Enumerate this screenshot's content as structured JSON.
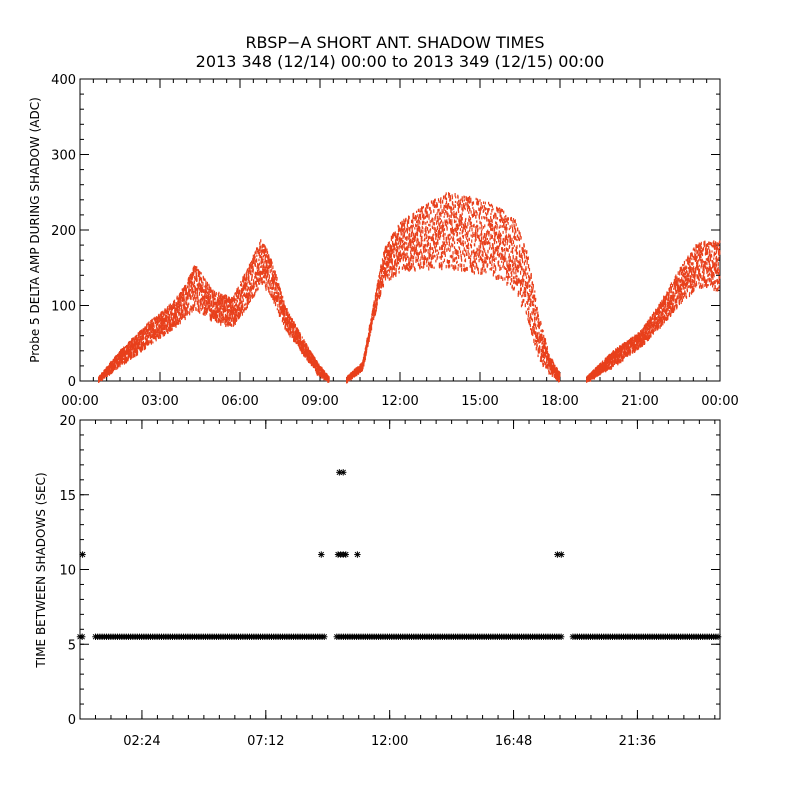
{
  "title": {
    "line1": "RBSP−A SHORT ANT. SHADOW TIMES",
    "line2": "2013 348 (12/14) 00:00 to 2013 349 (12/15) 00:00"
  },
  "chart_data": [
    {
      "type": "scatter",
      "name": "delta-amp",
      "ylabel": "Probe 5 DELTA AMP DURING SHADOW (ADC)",
      "xlabel": "",
      "xlim": [
        0,
        24
      ],
      "ylim": [
        0,
        400
      ],
      "x_tick_values": [
        0,
        3,
        6,
        9,
        12,
        15,
        18,
        21,
        24
      ],
      "x_tick_labels": [
        "00:00",
        "03:00",
        "06:00",
        "09:00",
        "12:00",
        "15:00",
        "18:00",
        "21:00",
        "00:00"
      ],
      "y_tick_values": [
        0,
        100,
        200,
        300,
        400
      ],
      "y_tick_labels": [
        "0",
        "100",
        "200",
        "300",
        "400"
      ],
      "color": "#e8401c",
      "envelope": {
        "x": [
          0.7,
          1.5,
          2.5,
          3.5,
          4.0,
          4.3,
          5.0,
          5.7,
          6.3,
          6.8,
          7.2,
          7.7,
          8.3,
          8.9,
          9.35,
          9.35,
          10.0,
          10.6,
          11.0,
          11.4,
          12.0,
          13.0,
          13.8,
          14.5,
          15.5,
          16.3,
          16.8,
          17.2,
          17.6,
          18.0,
          18.0,
          19.0,
          20.0,
          21.0,
          21.7,
          22.5,
          23.2,
          24.0
        ],
        "lower": [
          0,
          20,
          45,
          70,
          85,
          95,
          80,
          70,
          100,
          130,
          110,
          70,
          40,
          10,
          0,
          null,
          0,
          15,
          80,
          130,
          145,
          150,
          150,
          145,
          140,
          120,
          80,
          30,
          10,
          0,
          null,
          0,
          20,
          45,
          70,
          100,
          125,
          120
        ],
        "upper": [
          5,
          40,
          75,
          105,
          130,
          155,
          120,
          110,
          150,
          190,
          160,
          100,
          60,
          25,
          5,
          null,
          5,
          25,
          100,
          175,
          210,
          235,
          250,
          245,
          235,
          215,
          170,
          90,
          35,
          10,
          null,
          5,
          40,
          65,
          100,
          150,
          185,
          185
        ]
      }
    },
    {
      "type": "scatter",
      "name": "time-between",
      "ylabel": "TIME BETWEEN SHADOWS (SEC)",
      "xlabel": "",
      "xlim": [
        0,
        24.8
      ],
      "ylim": [
        0,
        20
      ],
      "x_tick_values": [
        2.4,
        7.2,
        12.0,
        16.8,
        21.6
      ],
      "x_tick_labels": [
        "02:24",
        "07:12",
        "12:00",
        "16:48",
        "21:36"
      ],
      "y_tick_values": [
        0,
        5,
        10,
        15,
        20
      ],
      "y_tick_labels": [
        "0",
        "5",
        "10",
        "15",
        "20"
      ],
      "color": "#000000",
      "baseline": {
        "y": 5.5,
        "ranges": [
          [
            0.0,
            0.15
          ],
          [
            0.6,
            9.5
          ],
          [
            9.95,
            18.7
          ],
          [
            19.1,
            24.8
          ]
        ]
      },
      "points": [
        {
          "x": 0.1,
          "y": 11
        },
        {
          "x": 9.35,
          "y": 11
        },
        {
          "x": 10.0,
          "y": 11
        },
        {
          "x": 10.1,
          "y": 11
        },
        {
          "x": 10.2,
          "y": 11
        },
        {
          "x": 10.3,
          "y": 11
        },
        {
          "x": 10.05,
          "y": 16.5
        },
        {
          "x": 10.2,
          "y": 16.5
        },
        {
          "x": 10.75,
          "y": 11
        },
        {
          "x": 18.5,
          "y": 11
        },
        {
          "x": 18.65,
          "y": 11
        }
      ]
    }
  ]
}
